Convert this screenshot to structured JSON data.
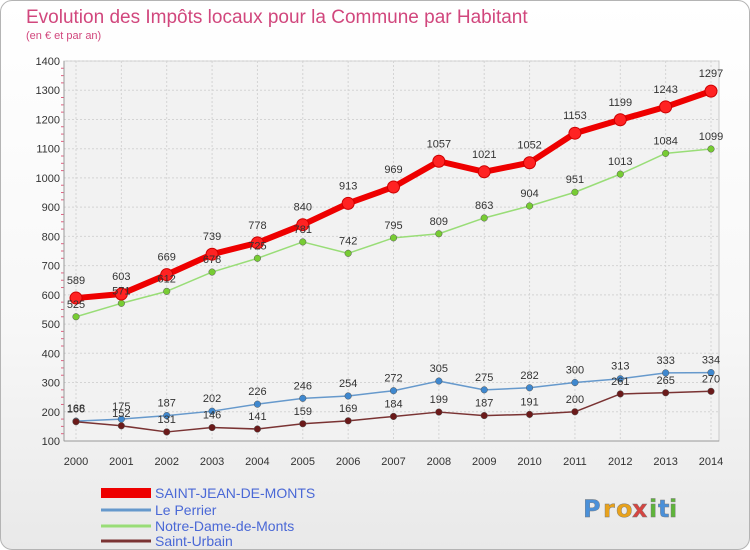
{
  "chart_data": {
    "type": "line",
    "title": "Evolution des Impôts locaux pour la Commune par Habitant",
    "subtitle": "(en € et par an)",
    "x": [
      "2000",
      "2001",
      "2002",
      "2003",
      "2004",
      "2005",
      "2006",
      "2007",
      "2008",
      "2009",
      "2010",
      "2011",
      "2012",
      "2013",
      "2014"
    ],
    "ylim": [
      100,
      1400
    ],
    "yticks": [
      "100",
      "200",
      "300",
      "400",
      "500",
      "600",
      "700",
      "800",
      "900",
      "1000",
      "1100",
      "1200",
      "1300",
      "1400"
    ],
    "grid": true,
    "legend_position": "bottom-left",
    "series": [
      {
        "name": "SAINT-JEAN-DE-MONTS",
        "color": "#ee0000",
        "marker": "#ff2222",
        "values": [
          589,
          603,
          669,
          739,
          778,
          840,
          913,
          969,
          1057,
          1021,
          1052,
          1153,
          1199,
          1243,
          1297
        ],
        "labels": [
          "589",
          "603",
          "669",
          "739",
          "778",
          "840",
          "913",
          "969",
          "1057",
          "1021",
          "1052",
          "1153",
          "1199",
          "1243",
          "1297"
        ]
      },
      {
        "name": "Le Perrier",
        "color": "#6699cc",
        "marker": "#3f88cf",
        "values": [
          168,
          175,
          187,
          202,
          226,
          246,
          254,
          272,
          305,
          275,
          282,
          300,
          313,
          333,
          334
        ],
        "labels": [
          "168",
          "175",
          "187",
          "202",
          "226",
          "246",
          "254",
          "272",
          "305",
          "275",
          "282",
          "300",
          "313",
          "333",
          "334"
        ]
      },
      {
        "name": "Notre-Dame-de-Monts",
        "color": "#99dd77",
        "marker": "#77cc33",
        "values": [
          525,
          571,
          612,
          678,
          725,
          781,
          742,
          795,
          809,
          863,
          904,
          951,
          1013,
          1084,
          1099
        ],
        "labels": [
          "525",
          "571",
          "612",
          "678",
          "725",
          "781",
          "742",
          "795",
          "809",
          "863",
          "904",
          "951",
          "1013",
          "1084",
          "1099"
        ]
      },
      {
        "name": "Saint-Urbain",
        "color": "#7a3333",
        "marker": "#6b1a1a",
        "values": [
          166,
          152,
          131,
          146,
          141,
          159,
          169,
          184,
          199,
          187,
          191,
          200,
          261,
          265,
          270
        ],
        "labels": [
          "166",
          "152",
          "131",
          "146",
          "141",
          "159",
          "169",
          "184",
          "199",
          "187",
          "191",
          "200",
          "261",
          "265",
          "270"
        ]
      }
    ]
  },
  "brand": {
    "letters": [
      "P",
      "r",
      "o",
      "x",
      "i",
      "t",
      "i"
    ],
    "colors": [
      "#4a90d9",
      "#e8a21c",
      "#e8a21c",
      "#d64541",
      "#5fb33b",
      "#4a90d9",
      "#5fb33b"
    ]
  }
}
